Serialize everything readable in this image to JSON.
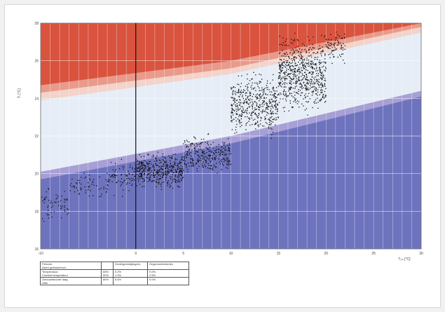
{
  "chart_data": {
    "type": "scatter",
    "title": "",
    "xlabel": "Tᵣₘ [°C]",
    "ylabel": "Tᵢ [°C]",
    "xlim": [
      -10,
      30
    ],
    "ylim": [
      16,
      28
    ],
    "x_ticks": [
      -10,
      -5,
      0,
      5,
      10,
      15,
      20,
      25,
      30
    ],
    "x_tick_labels": [
      "-10",
      "",
      "0",
      "5",
      "10",
      "15",
      "20",
      "25",
      "30"
    ],
    "y_ticks": [
      16,
      18,
      20,
      22,
      24,
      26,
      28
    ],
    "y_tick_labels": [
      "16",
      "18",
      "20",
      "22",
      "24",
      "26",
      "28"
    ],
    "grid": true,
    "zero_line_x": 0,
    "bands": {
      "upper": [
        {
          "name": "",
          "color": "#d9533f",
          "x": [
            -10,
            10,
            30
          ],
          "y": [
            24.7,
            26,
            28
          ]
        },
        {
          "name": "",
          "color": "#e99a8b",
          "x": [
            -10,
            10,
            30
          ],
          "y": [
            24.3,
            25.6,
            27.8
          ]
        },
        {
          "name": "",
          "color": "#f3d3ca",
          "x": [
            -10,
            10,
            30
          ],
          "y": [
            23.9,
            25.3,
            27.5
          ]
        }
      ],
      "lower": [
        {
          "name": "",
          "color": "#6e73be",
          "x": [
            -10,
            10,
            30
          ],
          "y": [
            19.7,
            21.6,
            24.1
          ]
        },
        {
          "name": "",
          "color": "#a79fd6",
          "x": [
            -10,
            10,
            30
          ],
          "y": [
            20.1,
            22.0,
            24.4
          ]
        }
      ],
      "middle_color": "#e6edf6",
      "background_color": "#f6f8fb"
    },
    "point_color": "#111111",
    "clusters": [
      {
        "x": [
          -10,
          -7
        ],
        "y": [
          17.2,
          19.5
        ],
        "n": 60
      },
      {
        "x": [
          -7,
          -3
        ],
        "y": [
          18.3,
          20.3
        ],
        "n": 60
      },
      {
        "x": [
          -3,
          0
        ],
        "y": [
          18.6,
          21.0
        ],
        "n": 80
      },
      {
        "x": [
          0,
          5
        ],
        "y": [
          19.0,
          21.3
        ],
        "n": 450
      },
      {
        "x": [
          5,
          10
        ],
        "y": [
          19.6,
          22.3
        ],
        "n": 300
      },
      {
        "x": [
          10,
          15
        ],
        "y": [
          21.6,
          25.8
        ],
        "n": 500
      },
      {
        "x": [
          15,
          20
        ],
        "y": [
          22.8,
          27.8
        ],
        "n": 700
      },
      {
        "x": [
          20,
          22
        ],
        "y": [
          25.5,
          28.0
        ],
        "n": 80
      }
    ],
    "legend_table": {
      "rows": [
        [
          "Periode:\nAlsen gebruikersvn.",
          "",
          "Ondergrenstijdsgren.",
          "Ongevondenheden"
        ],
        [
          "Temperatuur:\nComfort temperatuur",
          "65%\n90%",
          "5.2%\n1.5%",
          "0.0%\n2.5%"
        ],
        [
          "Gebouwfunctie/ laag\nwilla",
          "80%\n",
          "5.6%\n",
          "0.0%\n"
        ]
      ]
    }
  }
}
